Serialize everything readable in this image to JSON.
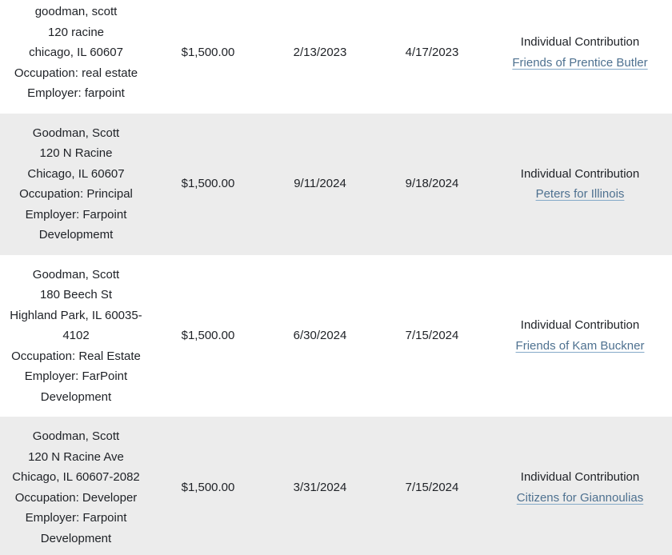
{
  "colors": {
    "row_alt_background": "#ececec",
    "link": "#4e7190",
    "text": "#1e2126"
  },
  "table": {
    "rows": [
      {
        "name": "goodman, scott",
        "address": "120 racine",
        "city_state_zip": "chicago, IL 60607",
        "occupation": "Occupation: real estate",
        "employer": "Employer: farpoint",
        "amount": "$1,500.00",
        "received_date": "2/13/2023",
        "reported_date": "4/17/2023",
        "contribution_type": "Individual Contribution",
        "committee": "Friends of Prentice Butler"
      },
      {
        "name": "Goodman, Scott",
        "address": "120 N Racine",
        "city_state_zip": "Chicago, IL 60607",
        "occupation": "Occupation: Principal",
        "employer": "Employer: Farpoint Developmemt",
        "amount": "$1,500.00",
        "received_date": "9/11/2024",
        "reported_date": "9/18/2024",
        "contribution_type": "Individual Contribution",
        "committee": "Peters for Illinois"
      },
      {
        "name": "Goodman, Scott",
        "address": "180 Beech St",
        "city_state_zip": "Highland Park, IL 60035-4102",
        "occupation": "Occupation: Real Estate",
        "employer": "Employer: FarPoint Development",
        "amount": "$1,500.00",
        "received_date": "6/30/2024",
        "reported_date": "7/15/2024",
        "contribution_type": "Individual Contribution",
        "committee": "Friends of Kam Buckner"
      },
      {
        "name": "Goodman, Scott",
        "address": "120 N Racine Ave",
        "city_state_zip": "Chicago, IL 60607-2082",
        "occupation": "Occupation: Developer",
        "employer": "Employer: Farpoint Development",
        "amount": "$1,500.00",
        "received_date": "3/31/2024",
        "reported_date": "7/15/2024",
        "contribution_type": "Individual Contribution",
        "committee": "Citizens for Giannoulias"
      }
    ]
  }
}
